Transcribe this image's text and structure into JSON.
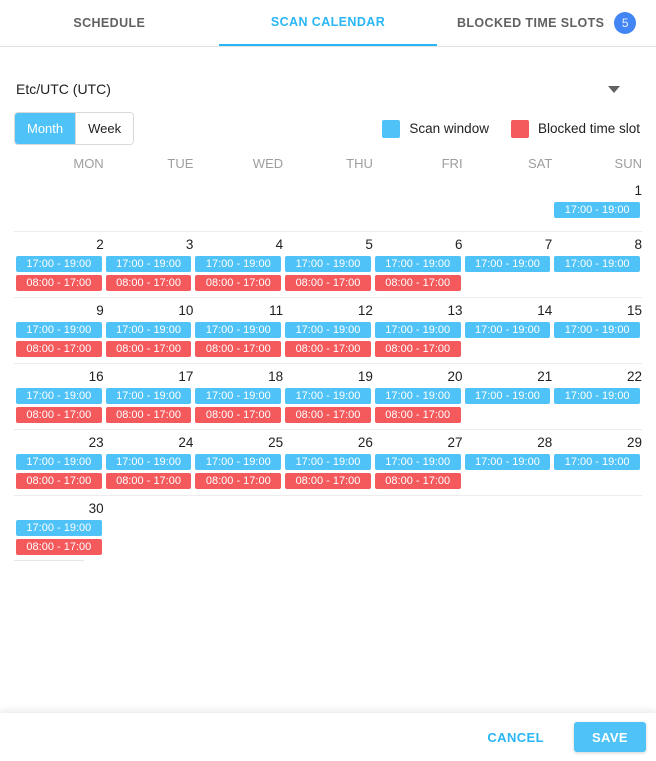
{
  "colors": {
    "scan": "#4fc3f7",
    "blocked": "#f4595c",
    "accent_blue": "#29b6f6",
    "badge_blue": "#4285f4"
  },
  "tabs": [
    {
      "label": "SCHEDULE",
      "active": false
    },
    {
      "label": "SCAN CALENDAR",
      "active": true
    },
    {
      "label": "BLOCKED TIME SLOTS",
      "active": false,
      "badge": "5"
    }
  ],
  "timezone": {
    "value": "Etc/UTC (UTC)"
  },
  "view_toggle": {
    "month_label": "Month",
    "week_label": "Week",
    "selected": "Month"
  },
  "legend": [
    {
      "label": "Scan window",
      "type": "scan"
    },
    {
      "label": "Blocked time slot",
      "type": "blocked"
    }
  ],
  "weekday_headers": [
    "MON",
    "TUE",
    "WED",
    "THU",
    "FRI",
    "SAT",
    "SUN"
  ],
  "calendar": {
    "weeks": [
      [
        null,
        null,
        null,
        null,
        null,
        null,
        {
          "day": 1,
          "events": [
            {
              "type": "scan",
              "time": "17:00 - 19:00"
            }
          ]
        }
      ],
      [
        {
          "day": 2,
          "events": [
            {
              "type": "scan",
              "time": "17:00 - 19:00"
            },
            {
              "type": "blocked",
              "time": "08:00 - 17:00"
            }
          ]
        },
        {
          "day": 3,
          "events": [
            {
              "type": "scan",
              "time": "17:00 - 19:00"
            },
            {
              "type": "blocked",
              "time": "08:00 - 17:00"
            }
          ]
        },
        {
          "day": 4,
          "events": [
            {
              "type": "scan",
              "time": "17:00 - 19:00"
            },
            {
              "type": "blocked",
              "time": "08:00 - 17:00"
            }
          ]
        },
        {
          "day": 5,
          "events": [
            {
              "type": "scan",
              "time": "17:00 - 19:00"
            },
            {
              "type": "blocked",
              "time": "08:00 - 17:00"
            }
          ]
        },
        {
          "day": 6,
          "events": [
            {
              "type": "scan",
              "time": "17:00 - 19:00"
            },
            {
              "type": "blocked",
              "time": "08:00 - 17:00"
            }
          ]
        },
        {
          "day": 7,
          "events": [
            {
              "type": "scan",
              "time": "17:00 - 19:00"
            }
          ]
        },
        {
          "day": 8,
          "events": [
            {
              "type": "scan",
              "time": "17:00 - 19:00"
            }
          ]
        }
      ],
      [
        {
          "day": 9,
          "events": [
            {
              "type": "scan",
              "time": "17:00 - 19:00"
            },
            {
              "type": "blocked",
              "time": "08:00 - 17:00"
            }
          ]
        },
        {
          "day": 10,
          "events": [
            {
              "type": "scan",
              "time": "17:00 - 19:00"
            },
            {
              "type": "blocked",
              "time": "08:00 - 17:00"
            }
          ]
        },
        {
          "day": 11,
          "events": [
            {
              "type": "scan",
              "time": "17:00 - 19:00"
            },
            {
              "type": "blocked",
              "time": "08:00 - 17:00"
            }
          ]
        },
        {
          "day": 12,
          "events": [
            {
              "type": "scan",
              "time": "17:00 - 19:00"
            },
            {
              "type": "blocked",
              "time": "08:00 - 17:00"
            }
          ]
        },
        {
          "day": 13,
          "events": [
            {
              "type": "scan",
              "time": "17:00 - 19:00"
            },
            {
              "type": "blocked",
              "time": "08:00 - 17:00"
            }
          ]
        },
        {
          "day": 14,
          "events": [
            {
              "type": "scan",
              "time": "17:00 - 19:00"
            }
          ]
        },
        {
          "day": 15,
          "events": [
            {
              "type": "scan",
              "time": "17:00 - 19:00"
            }
          ]
        }
      ],
      [
        {
          "day": 16,
          "events": [
            {
              "type": "scan",
              "time": "17:00 - 19:00"
            },
            {
              "type": "blocked",
              "time": "08:00 - 17:00"
            }
          ]
        },
        {
          "day": 17,
          "events": [
            {
              "type": "scan",
              "time": "17:00 - 19:00"
            },
            {
              "type": "blocked",
              "time": "08:00 - 17:00"
            }
          ]
        },
        {
          "day": 18,
          "events": [
            {
              "type": "scan",
              "time": "17:00 - 19:00"
            },
            {
              "type": "blocked",
              "time": "08:00 - 17:00"
            }
          ]
        },
        {
          "day": 19,
          "events": [
            {
              "type": "scan",
              "time": "17:00 - 19:00"
            },
            {
              "type": "blocked",
              "time": "08:00 - 17:00"
            }
          ]
        },
        {
          "day": 20,
          "events": [
            {
              "type": "scan",
              "time": "17:00 - 19:00"
            },
            {
              "type": "blocked",
              "time": "08:00 - 17:00"
            }
          ]
        },
        {
          "day": 21,
          "events": [
            {
              "type": "scan",
              "time": "17:00 - 19:00"
            }
          ]
        },
        {
          "day": 22,
          "events": [
            {
              "type": "scan",
              "time": "17:00 - 19:00"
            }
          ]
        }
      ],
      [
        {
          "day": 23,
          "events": [
            {
              "type": "scan",
              "time": "17:00 - 19:00"
            },
            {
              "type": "blocked",
              "time": "08:00 - 17:00"
            }
          ]
        },
        {
          "day": 24,
          "events": [
            {
              "type": "scan",
              "time": "17:00 - 19:00"
            },
            {
              "type": "blocked",
              "time": "08:00 - 17:00"
            }
          ]
        },
        {
          "day": 25,
          "events": [
            {
              "type": "scan",
              "time": "17:00 - 19:00"
            },
            {
              "type": "blocked",
              "time": "08:00 - 17:00"
            }
          ]
        },
        {
          "day": 26,
          "events": [
            {
              "type": "scan",
              "time": "17:00 - 19:00"
            },
            {
              "type": "blocked",
              "time": "08:00 - 17:00"
            }
          ]
        },
        {
          "day": 27,
          "events": [
            {
              "type": "scan",
              "time": "17:00 - 19:00"
            },
            {
              "type": "blocked",
              "time": "08:00 - 17:00"
            }
          ]
        },
        {
          "day": 28,
          "events": [
            {
              "type": "scan",
              "time": "17:00 - 19:00"
            }
          ]
        },
        {
          "day": 29,
          "events": [
            {
              "type": "scan",
              "time": "17:00 - 19:00"
            }
          ]
        }
      ],
      [
        {
          "day": 30,
          "events": [
            {
              "type": "scan",
              "time": "17:00 - 19:00"
            },
            {
              "type": "blocked",
              "time": "08:00 - 17:00"
            }
          ]
        },
        null,
        null,
        null,
        null,
        null,
        null
      ]
    ]
  },
  "footer": {
    "cancel": "CANCEL",
    "save": "SAVE"
  }
}
